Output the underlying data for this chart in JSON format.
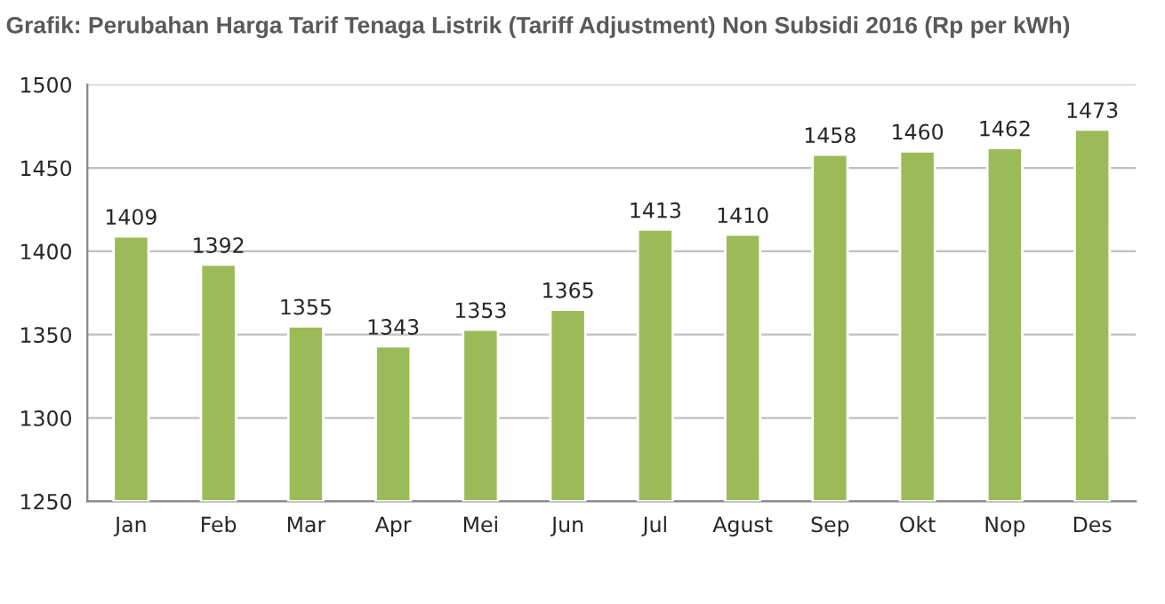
{
  "chart_data": {
    "type": "bar",
    "title": "Grafik: Perubahan Harga Tarif Tenaga Listrik (Tariff Adjustment) Non Subsidi 2016 (Rp per kWh)",
    "categories": [
      "Jan",
      "Feb",
      "Mar",
      "Apr",
      "Mei",
      "Jun",
      "Jul",
      "Agust",
      "Sep",
      "Okt",
      "Nop",
      "Des"
    ],
    "values": [
      1409,
      1392,
      1355,
      1343,
      1353,
      1365,
      1413,
      1410,
      1458,
      1460,
      1462,
      1473
    ],
    "color": "#9bbb59",
    "ylim": [
      1250,
      1500
    ],
    "yticks": [
      1250,
      1300,
      1350,
      1400,
      1450,
      1500
    ],
    "grid": "y",
    "data_labels": true
  }
}
